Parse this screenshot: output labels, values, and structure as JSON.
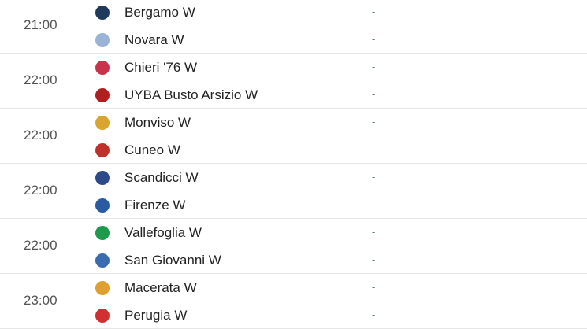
{
  "matches": [
    {
      "time": "21:00",
      "home": {
        "name": "Bergamo W",
        "logo": "bergamo-logo",
        "color": "#1f3b5c"
      },
      "away": {
        "name": "Novara W",
        "logo": "novara-logo",
        "color": "#9ab4d8"
      },
      "home_score": "-",
      "away_score": "-"
    },
    {
      "time": "22:00",
      "home": {
        "name": "Chieri '76 W",
        "logo": "chieri-logo",
        "color": "#c8324a"
      },
      "away": {
        "name": "UYBA Busto Arsizio W",
        "logo": "uyba-logo",
        "color": "#b02020"
      },
      "home_score": "-",
      "away_score": "-"
    },
    {
      "time": "22:00",
      "home": {
        "name": "Monviso W",
        "logo": "monviso-logo",
        "color": "#d9a530"
      },
      "away": {
        "name": "Cuneo W",
        "logo": "cuneo-logo",
        "color": "#c0302a"
      },
      "home_score": "-",
      "away_score": "-"
    },
    {
      "time": "22:00",
      "home": {
        "name": "Scandicci W",
        "logo": "scandicci-logo",
        "color": "#2a4a8a"
      },
      "away": {
        "name": "Firenze W",
        "logo": "firenze-logo",
        "color": "#2a5aa0"
      },
      "home_score": "-",
      "away_score": "-"
    },
    {
      "time": "22:00",
      "home": {
        "name": "Vallefoglia W",
        "logo": "vallefoglia-logo",
        "color": "#1e9a4a"
      },
      "away": {
        "name": "San Giovanni W",
        "logo": "san-giovanni-logo",
        "color": "#3a6ab0"
      },
      "home_score": "-",
      "away_score": "-"
    },
    {
      "time": "23:00",
      "home": {
        "name": "Macerata W",
        "logo": "macerata-logo",
        "color": "#e0a030"
      },
      "away": {
        "name": "Perugia W",
        "logo": "perugia-logo",
        "color": "#d03030"
      },
      "home_score": "-",
      "away_score": "-"
    }
  ]
}
